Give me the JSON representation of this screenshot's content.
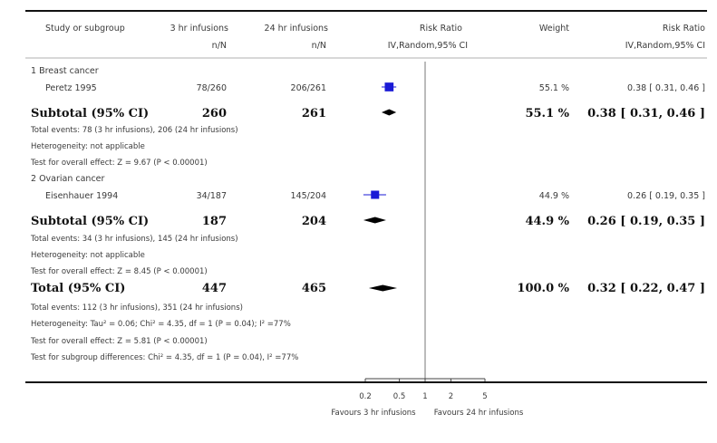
{
  "columns": {
    "study": "Study or subgroup",
    "group1": "3 hr infusions",
    "group1_sub": "n/N",
    "group2": "24 hr infusions",
    "group2_sub": "n/N",
    "plot": "Risk Ratio",
    "plot_sub": "IV,Random,95% CI",
    "weight": "Weight",
    "effect": "Risk Ratio",
    "effect_sub": "IV,Random,95% CI"
  },
  "subgroups": [
    {
      "title": "1 Breast cancer",
      "studies": [
        {
          "name": "Peretz 1995",
          "g1": "78/260",
          "g2": "206/261",
          "weight": "55.1 %",
          "ci_text": "0.38 [ 0.31, 0.46 ]"
        }
      ],
      "subtotal": {
        "label": "Subtotal (95% CI)",
        "g1": "260",
        "g2": "261",
        "weight": "55.1 %",
        "ci_text": "0.38 [ 0.31, 0.46 ]"
      },
      "notes": [
        "Total events: 78 (3 hr infusions), 206 (24 hr infusions)",
        "Heterogeneity: not applicable",
        "Test for overall effect: Z = 9.67 (P < 0.00001)"
      ]
    },
    {
      "title": "2 Ovarian cancer",
      "studies": [
        {
          "name": "Eisenhauer 1994",
          "g1": "34/187",
          "g2": "145/204",
          "weight": "44.9 %",
          "ci_text": "0.26 [ 0.19, 0.35 ]"
        }
      ],
      "subtotal": {
        "label": "Subtotal (95% CI)",
        "g1": "187",
        "g2": "204",
        "weight": "44.9 %",
        "ci_text": "0.26 [ 0.19, 0.35 ]"
      },
      "notes": [
        "Total events: 34 (3 hr infusions), 145 (24 hr infusions)",
        "Heterogeneity: not applicable",
        "Test for overall effect: Z = 8.45 (P < 0.00001)"
      ]
    }
  ],
  "total": {
    "label": "Total (95% CI)",
    "g1": "447",
    "g2": "465",
    "weight": "100.0 %",
    "ci_text": "0.32 [ 0.22, 0.47 ]",
    "notes": [
      "Total events: 112 (3 hr infusions), 351 (24 hr infusions)",
      "Heterogeneity: Tau² = 0.06; Chi² = 4.35, df = 1 (P = 0.04); I² =77%",
      "Test for overall effect: Z = 5.81 (P < 0.00001)",
      "Test for subgroup differences: Chi² = 4.35, df = 1 (P = 0.04), I² =77%"
    ]
  },
  "axis": {
    "ticks": [
      0.2,
      0.5,
      1,
      2,
      5
    ],
    "tick_labels": [
      "0.2",
      "0.5",
      "1",
      "2",
      "5"
    ],
    "favours_left": "Favours 3 hr infusions",
    "favours_right": "Favours 24 hr infusions"
  },
  "colors": {
    "study_marker": "#1a1ad6",
    "diamond": "#000000",
    "text": "#3a3a3a"
  },
  "chart_data": {
    "type": "scatter",
    "scale": "log",
    "xlim": [
      0.2,
      5
    ],
    "null_value": 1,
    "series": [
      {
        "label": "Peretz 1995",
        "kind": "study",
        "rr": 0.38,
        "lo": 0.31,
        "hi": 0.46,
        "weight": 55.1
      },
      {
        "label": "Subtotal (95% CI)",
        "kind": "diamond",
        "rr": 0.38,
        "lo": 0.31,
        "hi": 0.46,
        "weight": 55.1
      },
      {
        "label": "Eisenhauer 1994",
        "kind": "study",
        "rr": 0.26,
        "lo": 0.19,
        "hi": 0.35,
        "weight": 44.9
      },
      {
        "label": "Subtotal (95% CI)",
        "kind": "diamond",
        "rr": 0.26,
        "lo": 0.19,
        "hi": 0.35,
        "weight": 44.9
      },
      {
        "label": "Total (95% CI)",
        "kind": "diamond",
        "rr": 0.32,
        "lo": 0.22,
        "hi": 0.47,
        "weight": 100.0
      }
    ]
  }
}
